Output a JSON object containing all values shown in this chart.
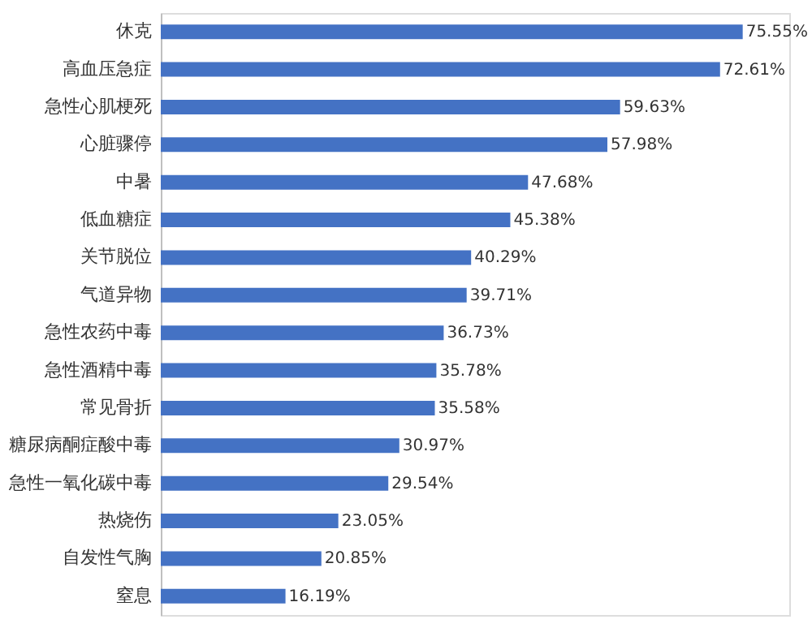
{
  "chart_data": {
    "type": "bar",
    "orientation": "horizontal",
    "color": "#4472c4",
    "categories": [
      "休克",
      "高血压急症",
      "急性心肌梗死",
      "心脏骤停",
      "中暑",
      "低血糖症",
      "关节脱位",
      "气道异物",
      "急性农药中毒",
      "急性酒精中毒",
      "常见骨折",
      "糖尿病酮症酸中毒",
      "急性一氧化碳中毒",
      "热烧伤",
      "自发性气胸",
      "窒息"
    ],
    "values": [
      75.55,
      72.61,
      59.63,
      57.98,
      47.68,
      45.38,
      40.29,
      39.71,
      36.73,
      35.78,
      35.58,
      30.97,
      29.54,
      23.05,
      20.85,
      16.19
    ],
    "value_labels": [
      "75.55%",
      "72.61%",
      "59.63%",
      "57.98%",
      "47.68%",
      "45.38%",
      "40.29%",
      "39.71%",
      "36.73%",
      "35.78%",
      "35.58%",
      "30.97%",
      "29.54%",
      "23.05%",
      "20.85%",
      "16.19%"
    ],
    "grid": false
  }
}
